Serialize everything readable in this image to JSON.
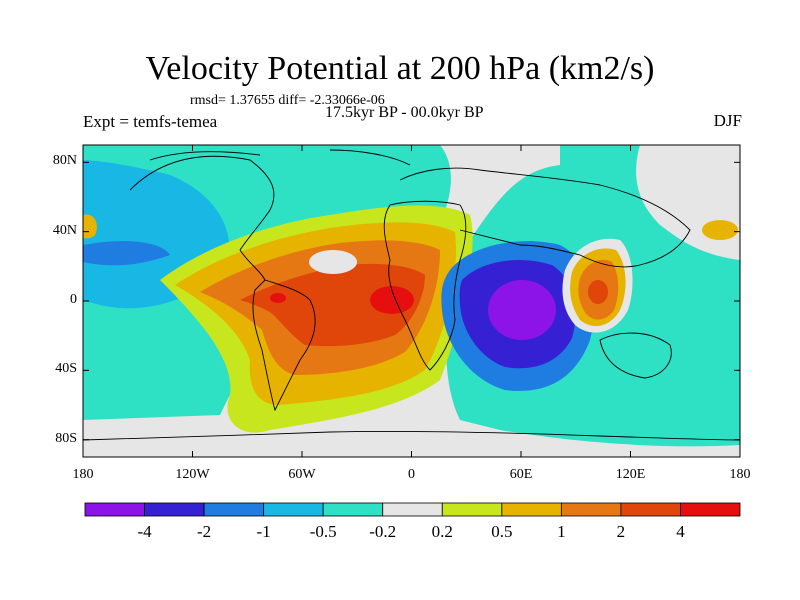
{
  "title": "Velocity Potential at 200 hPa (km2/s)",
  "stats": "rmsd= 1.37655 diff= -2.33066e-06",
  "expt": "Expt = temfs-temea",
  "period": "17.5kyr BP - 00.0kyr BP",
  "season": "DJF",
  "map": {
    "lat_ticks": [
      "80N",
      "40N",
      "0",
      "40S",
      "80S"
    ],
    "lat_values": [
      80,
      40,
      0,
      -40,
      -80
    ],
    "lon_ticks": [
      "180",
      "120W",
      "60W",
      "0",
      "60E",
      "120E",
      "180"
    ],
    "lon_values": [
      -180,
      -120,
      -60,
      0,
      60,
      120,
      180
    ],
    "lat_range": [
      -90,
      90
    ],
    "lon_range": [
      -180,
      180
    ]
  },
  "colorbar": {
    "labels": [
      "-4",
      "-2",
      "-1",
      "-0.5",
      "-0.2",
      "0.2",
      "0.5",
      "1",
      "2",
      "4"
    ],
    "colors": [
      "#8c14e8",
      "#3520d4",
      "#1f7ce0",
      "#19b7e4",
      "#2ee0c4",
      "#e6e6e6",
      "#c8e61e",
      "#e6b400",
      "#e67814",
      "#e0460a",
      "#e60f0f"
    ]
  }
}
